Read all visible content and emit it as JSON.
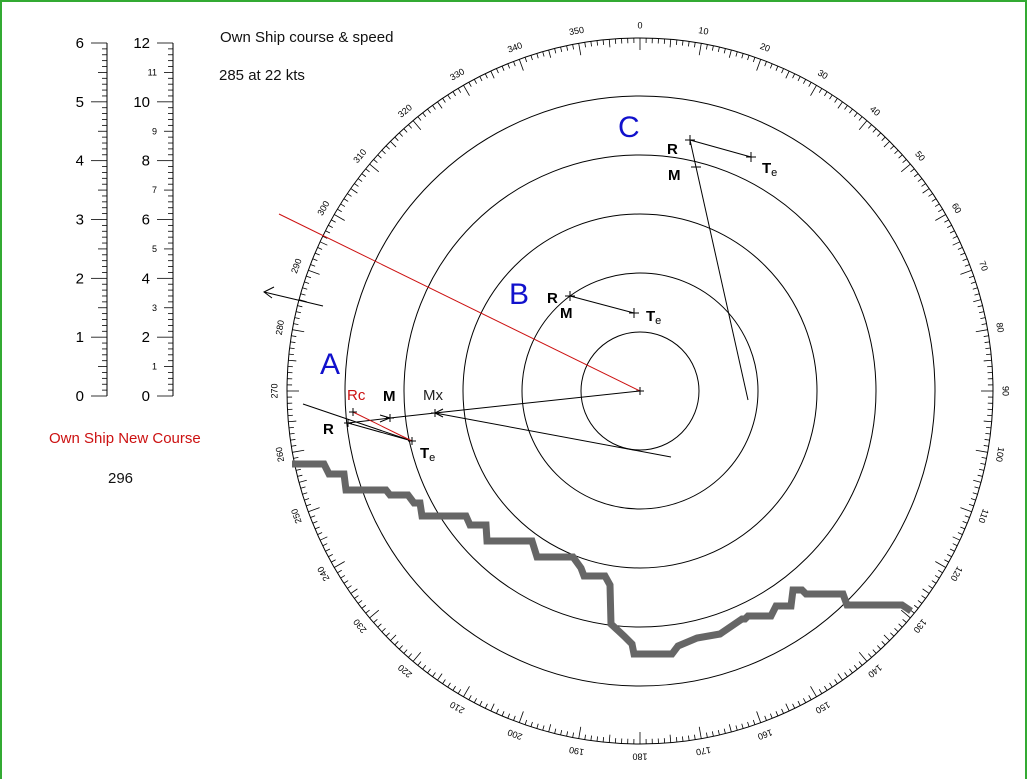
{
  "header": {
    "title": "Own Ship course & speed",
    "course_speed": "285   at 22 kts"
  },
  "new_course": {
    "label": "Own Ship New Course",
    "value": "296"
  },
  "scales": {
    "left": {
      "major": [
        "0",
        "1",
        "2",
        "3",
        "4",
        "5",
        "6"
      ]
    },
    "right": {
      "major": [
        "0",
        "2",
        "4",
        "6",
        "8",
        "10",
        "12"
      ],
      "minor": [
        "1",
        "3",
        "5",
        "7",
        "9",
        "11"
      ]
    }
  },
  "plot": {
    "letters": [
      "A",
      "B",
      "C"
    ],
    "marks": {
      "R": "R",
      "M": "M",
      "T": "T",
      "Te_sub": "e",
      "Rc": "Rc",
      "Mx": "Mx"
    }
  },
  "bearings": [
    "0",
    "10",
    "20",
    "30",
    "40",
    "50",
    "60",
    "70",
    "80",
    "90",
    "100",
    "110",
    "120",
    "130",
    "140",
    "150",
    "160",
    "170",
    "180",
    "190",
    "200",
    "210",
    "220",
    "230",
    "240",
    "250",
    "260",
    "270",
    "280",
    "290",
    "300",
    "310",
    "320",
    "330",
    "340",
    "350"
  ],
  "colors": {
    "red": "#cc1111",
    "blue": "#1111cc",
    "frame_green": "#33aa33",
    "coast_gray": "#666666"
  }
}
